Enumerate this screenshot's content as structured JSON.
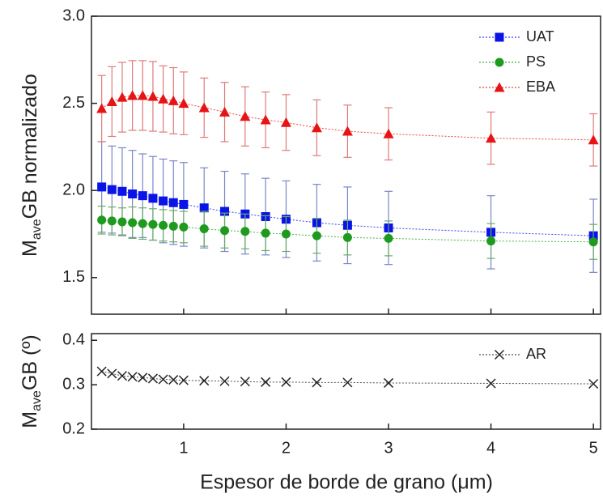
{
  "chart_data": [
    {
      "type": "line",
      "ylabel": [
        "M",
        "ave",
        "GB normalizado"
      ],
      "x": [
        0.2,
        0.3,
        0.4,
        0.5,
        0.6,
        0.7,
        0.8,
        0.9,
        1.0,
        1.2,
        1.4,
        1.6,
        1.8,
        2.0,
        2.3,
        2.6,
        3.0,
        4.0,
        5.0
      ],
      "xlim": [
        0.1,
        5.07
      ],
      "xticks": [
        1,
        2,
        3,
        4,
        5
      ],
      "x_tick_labels": false,
      "ylim": [
        1.29,
        3.0
      ],
      "yticks": [
        1.5,
        {
          "value": 2.0,
          "label": "2.0"
        },
        2.5,
        {
          "value": 3.0,
          "label": "3.0"
        }
      ],
      "legend": "top-right",
      "series": [
        {
          "name": "UAT",
          "color": "#0a14e6",
          "error_color": "#7a86c8",
          "marker": "square",
          "values": [
            2.02,
            2.005,
            1.995,
            1.98,
            1.97,
            1.955,
            1.94,
            1.93,
            1.92,
            1.9,
            1.88,
            1.865,
            1.85,
            1.835,
            1.815,
            1.8,
            1.785,
            1.76,
            1.74
          ],
          "error": [
            0.26,
            0.25,
            0.25,
            0.25,
            0.24,
            0.24,
            0.24,
            0.24,
            0.24,
            0.23,
            0.23,
            0.23,
            0.22,
            0.22,
            0.22,
            0.22,
            0.21,
            0.21,
            0.21
          ]
        },
        {
          "name": "PS",
          "color": "#1e9a1e",
          "error_color": "#6aaa6a",
          "marker": "circle",
          "values": [
            1.83,
            1.825,
            1.82,
            1.815,
            1.81,
            1.805,
            1.8,
            1.795,
            1.79,
            1.78,
            1.77,
            1.765,
            1.755,
            1.75,
            1.74,
            1.73,
            1.725,
            1.71,
            1.705
          ],
          "error": [
            0.08,
            0.08,
            0.08,
            0.09,
            0.09,
            0.09,
            0.09,
            0.09,
            0.09,
            0.1,
            0.1,
            0.1,
            0.1,
            0.1,
            0.1,
            0.1,
            0.1,
            0.1,
            0.1
          ]
        },
        {
          "name": "EBA",
          "color": "#e61414",
          "error_color": "#e07a7a",
          "marker": "triangle",
          "values": [
            2.47,
            2.51,
            2.535,
            2.545,
            2.545,
            2.54,
            2.525,
            2.515,
            2.5,
            2.475,
            2.45,
            2.425,
            2.405,
            2.39,
            2.36,
            2.34,
            2.325,
            2.3,
            2.29
          ],
          "error": [
            0.19,
            0.2,
            0.2,
            0.2,
            0.2,
            0.2,
            0.19,
            0.19,
            0.18,
            0.17,
            0.17,
            0.17,
            0.16,
            0.16,
            0.16,
            0.15,
            0.15,
            0.15,
            0.15
          ]
        }
      ]
    },
    {
      "type": "line",
      "ylabel": [
        "M",
        "ave",
        "GB (º)"
      ],
      "xlabel": "Espesor de borde de grano (μm)",
      "x": [
        0.2,
        0.3,
        0.4,
        0.5,
        0.6,
        0.7,
        0.8,
        0.9,
        1.0,
        1.2,
        1.4,
        1.6,
        1.8,
        2.0,
        2.3,
        2.6,
        3.0,
        4.0,
        5.0
      ],
      "xlim": [
        0.1,
        5.07
      ],
      "xticks": [
        1,
        2,
        3,
        4,
        5
      ],
      "x_tick_labels": true,
      "ylim": [
        0.2,
        0.415
      ],
      "yticks": [
        0.2,
        0.3,
        0.4
      ],
      "legend": "top-right",
      "series": [
        {
          "name": "AR",
          "color": "#222222",
          "marker": "cross",
          "values": [
            0.33,
            0.325,
            0.32,
            0.318,
            0.316,
            0.314,
            0.312,
            0.311,
            0.31,
            0.309,
            0.308,
            0.307,
            0.306,
            0.306,
            0.305,
            0.305,
            0.304,
            0.303,
            0.302
          ]
        }
      ]
    }
  ]
}
